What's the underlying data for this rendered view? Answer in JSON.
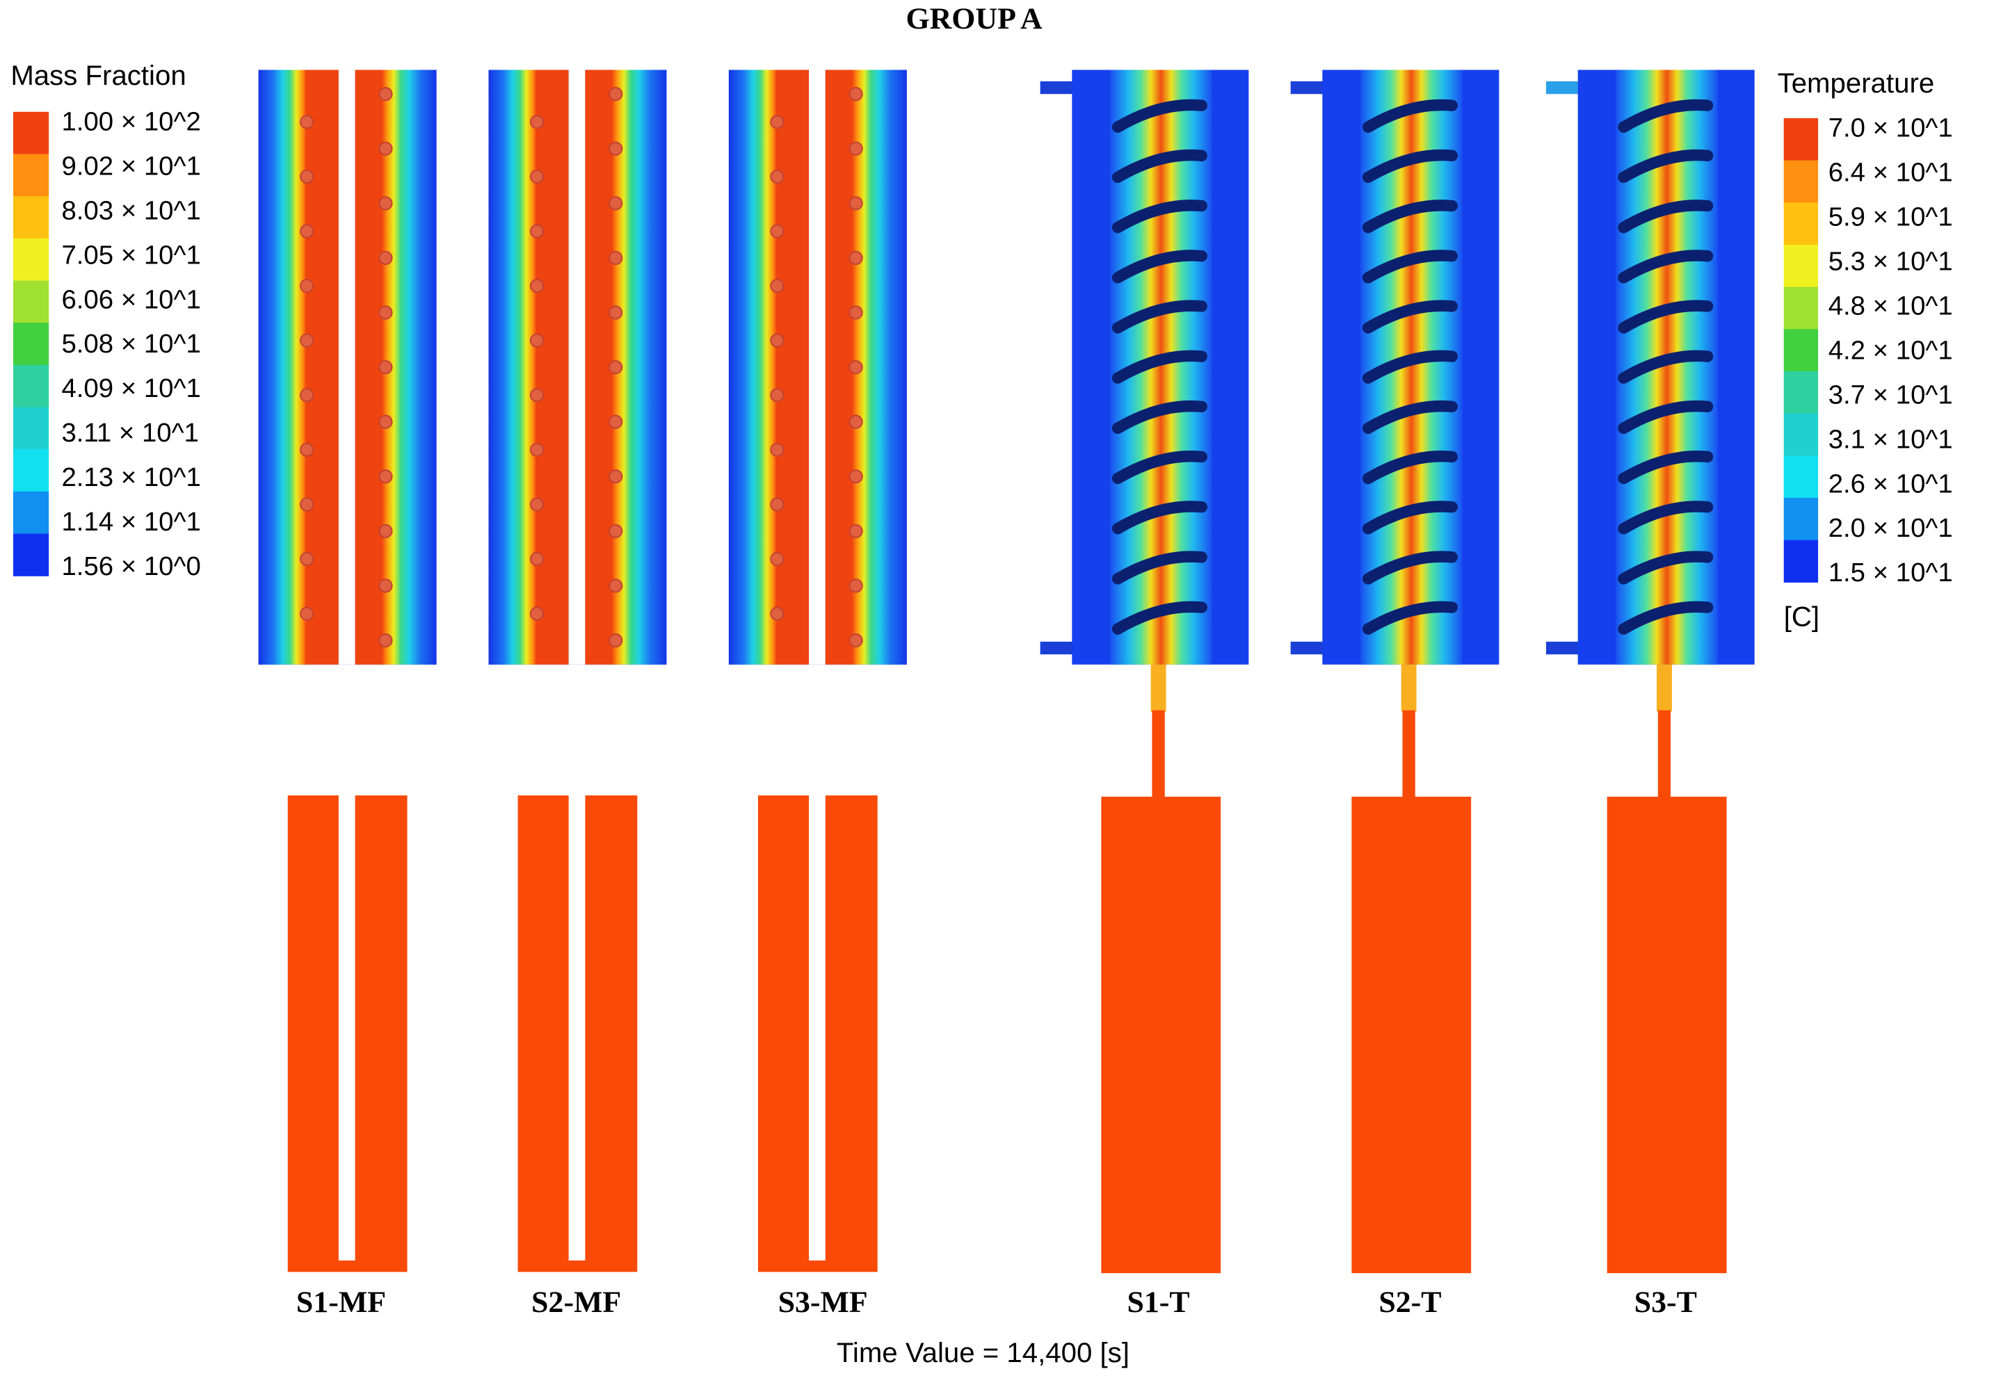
{
  "header": {
    "title": "GROUP A"
  },
  "mass_fraction_legend": {
    "title": "Mass Fraction",
    "labels": [
      "1.00 × 10^2",
      "9.02 × 10^1",
      "8.03 × 10^1",
      "7.05 × 10^1",
      "6.06 × 10^1",
      "5.08 × 10^1",
      "4.09 × 10^1",
      "3.11 × 10^1",
      "2.13 × 10^1",
      "1.14 × 10^1",
      "1.56 × 10^0"
    ]
  },
  "temperature_legend": {
    "title": "Temperature",
    "unit": "[C]",
    "labels": [
      "7.0 × 10^1",
      "6.4 × 10^1",
      "5.9 × 10^1",
      "5.3 × 10^1",
      "4.8 × 10^1",
      "4.2 × 10^1",
      "3.7 × 10^1",
      "3.1 × 10^1",
      "2.6 × 10^1",
      "2.0 × 10^1",
      "1.5 × 10^1"
    ]
  },
  "panels": [
    "S1-MF",
    "S2-MF",
    "S3-MF",
    "S1-T",
    "S2-T",
    "S3-T"
  ],
  "footer": {
    "time": "Time Value = 14,400 [s]"
  }
}
